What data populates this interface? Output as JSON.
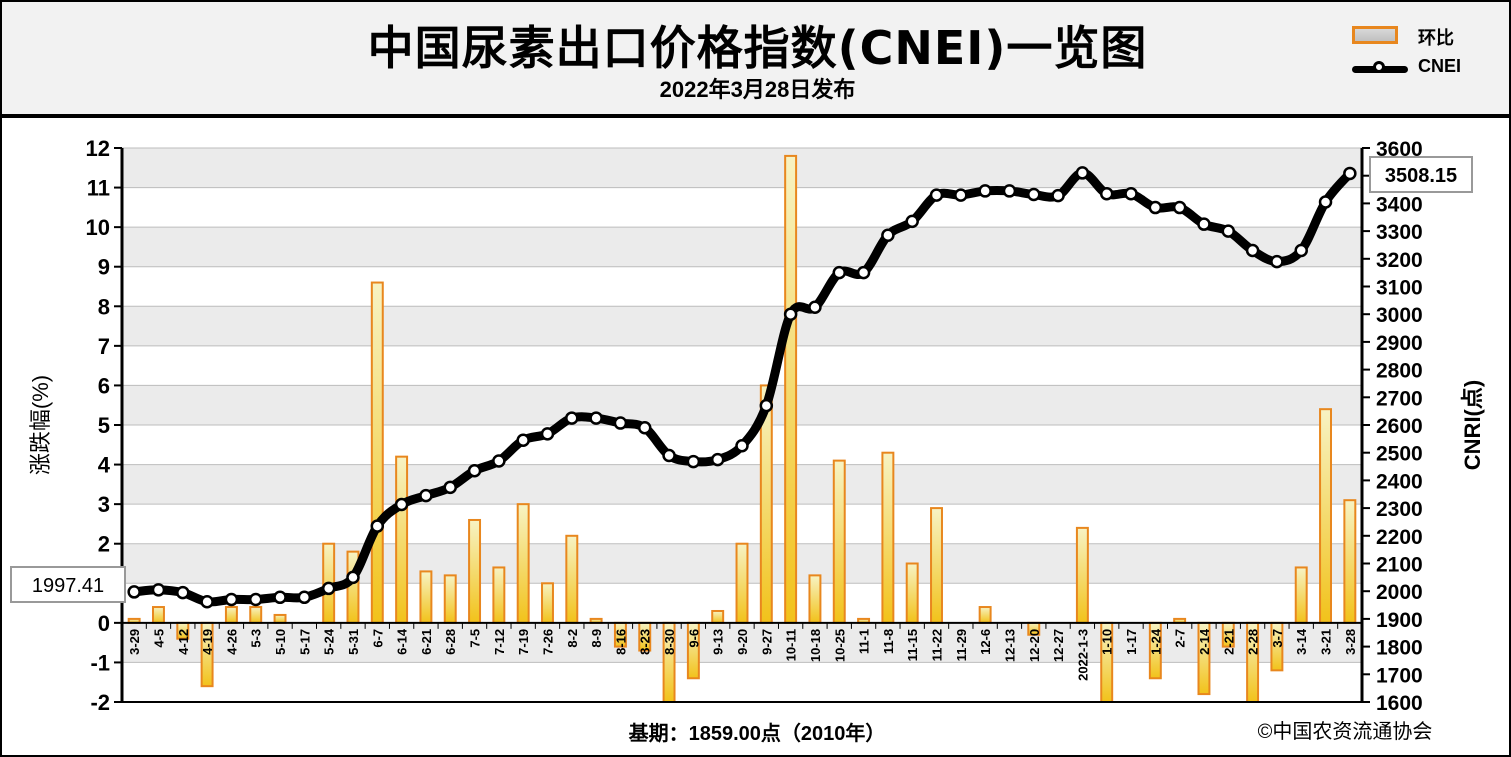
{
  "header": {
    "title": "中国尿素出口价格指数(CNEI)一览图",
    "subtitle": "2022年3月28日发布"
  },
  "legend": {
    "bar_label": "环比",
    "line_label": "CNEI"
  },
  "footer": {
    "base": "基期：1859.00点（2010年）",
    "copyright": "©中国农资流通协会"
  },
  "callouts": {
    "start": "1997.41",
    "end": "3508.15"
  },
  "colors": {
    "bar_border": "#e8871e",
    "bar_fill_top": "#f5f0b8",
    "bar_fill_bottom": "#f2c21a",
    "line": "#000000",
    "plot_bg": "#e8e8e8"
  },
  "chart_data": {
    "type": "bar",
    "combo": "bar+line",
    "categories": [
      "3-29",
      "4-5",
      "4-12",
      "4-19",
      "4-26",
      "5-3",
      "5-10",
      "5-17",
      "5-24",
      "5-31",
      "6-7",
      "6-14",
      "6-21",
      "6-28",
      "7-5",
      "7-12",
      "7-19",
      "7-26",
      "8-2",
      "8-9",
      "8-16",
      "8-23",
      "8-30",
      "9-6",
      "9-13",
      "9-20",
      "9-27",
      "10-11",
      "10-18",
      "10-25",
      "11-1",
      "11-8",
      "11-15",
      "11-22",
      "11-29",
      "12-6",
      "12-13",
      "12-20",
      "12-27",
      "2022-1-3",
      "1-10",
      "1-17",
      "1-24",
      "2-7",
      "2-14",
      "2-21",
      "2-28",
      "3-7",
      "3-14",
      "3-21",
      "3-28"
    ],
    "series": [
      {
        "name": "环比",
        "type": "bar",
        "axis": "left",
        "values": [
          0.1,
          0.4,
          -0.4,
          -1.6,
          0.4,
          0.4,
          0.2,
          0.0,
          2.0,
          1.8,
          8.6,
          4.2,
          1.3,
          1.2,
          2.6,
          1.4,
          3.0,
          1.0,
          2.2,
          0.1,
          -0.6,
          -0.7,
          -2.0,
          -1.4,
          0.3,
          2.0,
          6.0,
          11.8,
          1.2,
          4.1,
          0.1,
          4.3,
          1.5,
          2.9,
          0.0,
          0.4,
          0.0,
          -0.3,
          0.0,
          2.4,
          -2.0,
          0.0,
          -1.4,
          0.1,
          -1.8,
          -0.6,
          -2.0,
          -1.2,
          1.4,
          5.4,
          3.1
        ]
      },
      {
        "name": "CNEI",
        "type": "line",
        "axis": "right",
        "values": [
          1997.41,
          2005,
          1995,
          1962,
          1970,
          1970,
          1978,
          1978,
          2010,
          2050,
          2235,
          2313,
          2345,
          2375,
          2435,
          2470,
          2545,
          2568,
          2625,
          2625,
          2607,
          2590,
          2490,
          2468,
          2475,
          2525,
          2670,
          3000,
          3025,
          3150,
          3150,
          3285,
          3335,
          3430,
          3430,
          3445,
          3445,
          3432,
          3428,
          3510,
          3435,
          3435,
          3385,
          3385,
          3325,
          3300,
          3230,
          3190,
          3230,
          3405,
          3508.15
        ]
      }
    ],
    "ylabel": "涨跌幅(%)",
    "y2label": "CNRI(点)",
    "ylim": [
      -2,
      12
    ],
    "yticks": [
      -2,
      -1,
      0,
      1,
      2,
      3,
      4,
      5,
      6,
      7,
      8,
      9,
      10,
      11,
      12
    ],
    "y2lim": [
      1600,
      3600
    ],
    "y2ticks": [
      1600,
      1700,
      1800,
      1900,
      2000,
      2100,
      2200,
      2300,
      2400,
      2500,
      2600,
      2700,
      2800,
      2900,
      3000,
      3100,
      3200,
      3300,
      3400,
      3500,
      3600
    ],
    "grid": true,
    "legend_position": "top-right"
  }
}
